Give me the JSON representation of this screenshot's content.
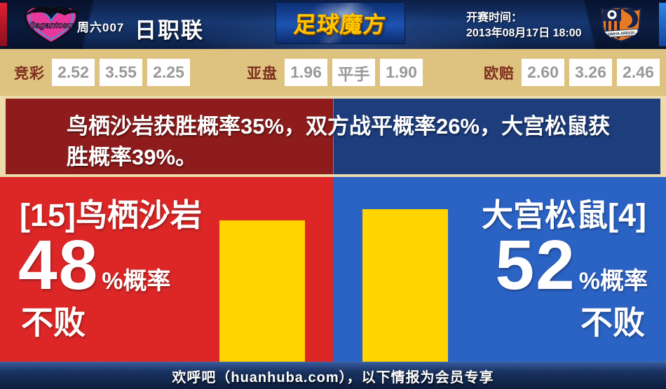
{
  "header": {
    "match_tag": "周六007",
    "league": "日职联",
    "brand": "足球魔方",
    "kickoff_label": "开赛时间：",
    "kickoff_time": "2013年08月17日 18:00",
    "home_logo_text": "Sagantosu",
    "away_logo_text": "OMIYA ARDIJA"
  },
  "odds": {
    "groups": [
      {
        "label": "竞彩",
        "values": [
          "2.52",
          "3.55",
          "2.25"
        ]
      },
      {
        "label": "亚盘",
        "values": [
          "1.96",
          "平手",
          "1.90"
        ]
      },
      {
        "label": "欧赔",
        "values": [
          "2.60",
          "3.26",
          "2.46"
        ]
      }
    ]
  },
  "prediction": {
    "text": "鸟栖沙岩获胜概率35%，双方战平概率26%，大宫松鼠获胜概率39%。",
    "home_win_pct": 35,
    "draw_pct": 26,
    "away_win_pct": 39
  },
  "home_panel": {
    "name": "[15]鸟栖沙岩",
    "percent": "48",
    "percent_suffix": "%概率",
    "verdict": "不败",
    "bar_percent": 48
  },
  "away_panel": {
    "name": "大宫松鼠[4]",
    "percent": "52",
    "percent_suffix": "%概率",
    "verdict": "不败",
    "bar_percent": 52
  },
  "footer": {
    "text": "欢呼吧（huanhuba.com），以下情报为会员专享"
  },
  "colors": {
    "home_red": "#dd2727",
    "away_blue": "#2b63c5",
    "band_home_red": "#8e1c1c",
    "band_away_navy": "#1d3d7d",
    "bar_yellow": "#ffd400",
    "odds_tan": "#dec27f",
    "brand_gold": "#ffc600"
  },
  "chart_data": {
    "type": "bar",
    "categories": [
      "[15]鸟栖沙岩",
      "大宫松鼠[4]"
    ],
    "values": [
      48,
      52
    ],
    "title": "不败概率",
    "unit": "%",
    "ylim": [
      0,
      62
    ]
  }
}
